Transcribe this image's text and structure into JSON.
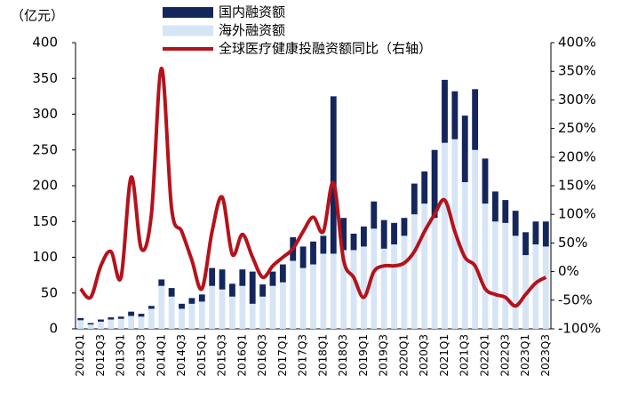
{
  "chart_data": {
    "type": "bar",
    "y_unit_label": "（亿元）",
    "categories": [
      "2012Q1",
      null,
      "2012Q3",
      null,
      "2013Q1",
      null,
      "2013Q3",
      null,
      "2014Q1",
      null,
      "2014Q3",
      null,
      "2015Q1",
      null,
      "2015Q3",
      null,
      "2016Q1",
      null,
      "2016Q3",
      null,
      "2017Q1",
      null,
      "2017Q3",
      null,
      "2018Q1",
      null,
      "2018Q3",
      null,
      "2019Q1",
      null,
      "2019Q3",
      null,
      "2020Q1",
      null,
      "2020Q3",
      null,
      "2021Q1",
      null,
      "2021Q3",
      null,
      "2022Q1",
      null,
      "2022Q3",
      null,
      "2023Q1",
      null,
      "2023Q3"
    ],
    "series": [
      {
        "name": "国内融资额",
        "color": "#14265c",
        "values": [
          3,
          2,
          3,
          3,
          3,
          6,
          4,
          4,
          9,
          12,
          7,
          8,
          10,
          25,
          28,
          18,
          23,
          45,
          17,
          20,
          25,
          33,
          30,
          32,
          25,
          220,
          45,
          23,
          28,
          38,
          40,
          30,
          25,
          43,
          45,
          95,
          88,
          67,
          93,
          85,
          63,
          42,
          32,
          35,
          32,
          32,
          35
        ]
      },
      {
        "name": "海外融资额",
        "color": "#d6e5f5",
        "values": [
          12,
          6,
          10,
          13,
          14,
          18,
          17,
          28,
          60,
          45,
          28,
          35,
          38,
          60,
          55,
          45,
          60,
          35,
          45,
          60,
          65,
          95,
          85,
          90,
          105,
          105,
          110,
          110,
          115,
          140,
          112,
          118,
          130,
          160,
          175,
          155,
          260,
          265,
          205,
          250,
          175,
          150,
          148,
          130,
          103,
          118,
          115
        ]
      },
      {
        "name": "全球医疗健康投融资额同比（右轴）",
        "color": "#b5121b",
        "axis": "y2",
        "values": [
          -30,
          -45,
          10,
          35,
          -10,
          165,
          40,
          100,
          355,
          110,
          70,
          20,
          -30,
          70,
          130,
          30,
          65,
          25,
          -10,
          10,
          25,
          40,
          70,
          95,
          70,
          155,
          20,
          -10,
          -45,
          0,
          10,
          10,
          15,
          35,
          70,
          100,
          125,
          70,
          25,
          10,
          -30,
          -40,
          -45,
          -60,
          -40,
          -20,
          -10
        ]
      }
    ],
    "ylim": [
      0,
      400
    ],
    "yticks": [
      0,
      50,
      100,
      150,
      200,
      250,
      300,
      350,
      400
    ],
    "y2lim": [
      -100,
      400
    ],
    "y2ticks": [
      {
        "value": -100,
        "label": "-100%"
      },
      {
        "value": -50,
        "label": "-50%"
      },
      {
        "value": 0,
        "label": "0%"
      },
      {
        "value": 50,
        "label": "50%"
      },
      {
        "value": 100,
        "label": "100%"
      },
      {
        "value": 150,
        "label": "150%"
      },
      {
        "value": 200,
        "label": "200%"
      },
      {
        "value": 250,
        "label": "250%"
      },
      {
        "value": 300,
        "label": "300%"
      },
      {
        "value": 350,
        "label": "350%"
      },
      {
        "value": 400,
        "label": "400%"
      }
    ]
  }
}
